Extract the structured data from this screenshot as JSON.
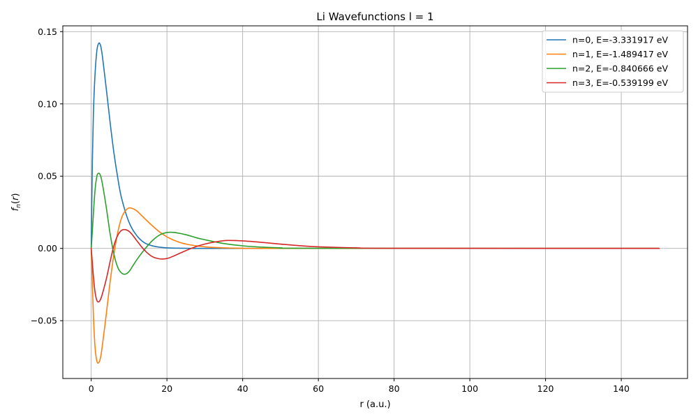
{
  "chart_data": {
    "type": "line",
    "title": "Li Wavefunctions l = 1",
    "xlabel": "r (a.u.)",
    "ylabel": "f_n(r)",
    "xlim": [
      -7.5,
      157.5
    ],
    "ylim": [
      -0.09,
      0.154
    ],
    "xticks": [
      0,
      20,
      40,
      60,
      80,
      100,
      120,
      140
    ],
    "yticks": [
      -0.05,
      0.0,
      0.05,
      0.1,
      0.15
    ],
    "xtick_labels": [
      "0",
      "20",
      "40",
      "60",
      "80",
      "100",
      "120",
      "140"
    ],
    "ytick_labels": [
      "−0.05",
      "0.00",
      "0.05",
      "0.10",
      "0.15"
    ],
    "grid": true,
    "legend_position": "top-right",
    "series": [
      {
        "name": "n=0, E=-3.331917 eV",
        "color": "#1f77b4",
        "x": [
          0,
          0.3,
          0.6,
          1,
          1.5,
          2,
          2.5,
          3,
          4,
          5,
          6,
          7,
          8,
          10,
          12,
          14,
          16,
          18,
          20,
          25,
          30,
          40,
          60,
          150
        ],
        "y": [
          0,
          0.06,
          0.095,
          0.12,
          0.137,
          0.142,
          0.14,
          0.132,
          0.11,
          0.087,
          0.066,
          0.049,
          0.035,
          0.018,
          0.009,
          0.004,
          0.0019,
          0.0009,
          0.0004,
          7e-05,
          1e-05,
          0,
          0,
          0
        ]
      },
      {
        "name": "n=1, E=-1.489417 eV",
        "color": "#ff7f0e",
        "x": [
          0,
          0.3,
          0.6,
          1,
          1.5,
          2,
          2.5,
          3,
          4,
          5,
          6,
          7,
          8,
          9,
          10,
          11,
          12,
          14,
          16,
          18,
          20,
          22,
          25,
          30,
          35,
          40,
          50,
          150
        ],
        "y": [
          0,
          -0.025,
          -0.048,
          -0.068,
          -0.078,
          -0.079,
          -0.075,
          -0.066,
          -0.045,
          -0.023,
          -0.004,
          0.011,
          0.021,
          0.026,
          0.028,
          0.0275,
          0.026,
          0.021,
          0.016,
          0.0115,
          0.008,
          0.0055,
          0.003,
          0.0011,
          0.0004,
          0.00014,
          2e-05,
          0
        ]
      },
      {
        "name": "n=2, E=-0.840666 eV",
        "color": "#2ca02c",
        "x": [
          0,
          0.3,
          0.6,
          1,
          1.5,
          2,
          2.5,
          3,
          4,
          5,
          6,
          7,
          8,
          9,
          10,
          11,
          12,
          14,
          16,
          18,
          20,
          22,
          25,
          28,
          30,
          35,
          40,
          45,
          50,
          60,
          150
        ],
        "y": [
          0,
          0.012,
          0.025,
          0.04,
          0.05,
          0.052,
          0.05,
          0.044,
          0.028,
          0.01,
          -0.004,
          -0.013,
          -0.017,
          -0.0178,
          -0.016,
          -0.012,
          -0.008,
          -0.001,
          0.005,
          0.0092,
          0.011,
          0.011,
          0.0095,
          0.0072,
          0.006,
          0.0034,
          0.0018,
          0.0009,
          0.0004,
          0.0001,
          0
        ]
      },
      {
        "name": "n=3, E=-0.539199 eV",
        "color": "#d62728",
        "x": [
          0,
          0.3,
          0.6,
          1,
          1.5,
          2,
          2.5,
          3,
          4,
          5,
          6,
          7,
          8,
          9,
          10,
          11,
          12,
          14,
          16,
          18,
          20,
          22,
          25,
          28,
          30,
          33,
          36,
          40,
          45,
          50,
          55,
          60,
          70,
          80,
          150
        ],
        "y": [
          0,
          -0.01,
          -0.02,
          -0.03,
          -0.036,
          -0.037,
          -0.035,
          -0.031,
          -0.021,
          -0.009,
          0.002,
          0.009,
          0.0125,
          0.013,
          0.0118,
          0.009,
          0.0055,
          -0.001,
          -0.0055,
          -0.0072,
          -0.007,
          -0.005,
          -0.0015,
          0.0015,
          0.003,
          0.0046,
          0.0055,
          0.0052,
          0.0042,
          0.003,
          0.0019,
          0.0011,
          0.0004,
          0.0001,
          0
        ]
      }
    ]
  }
}
